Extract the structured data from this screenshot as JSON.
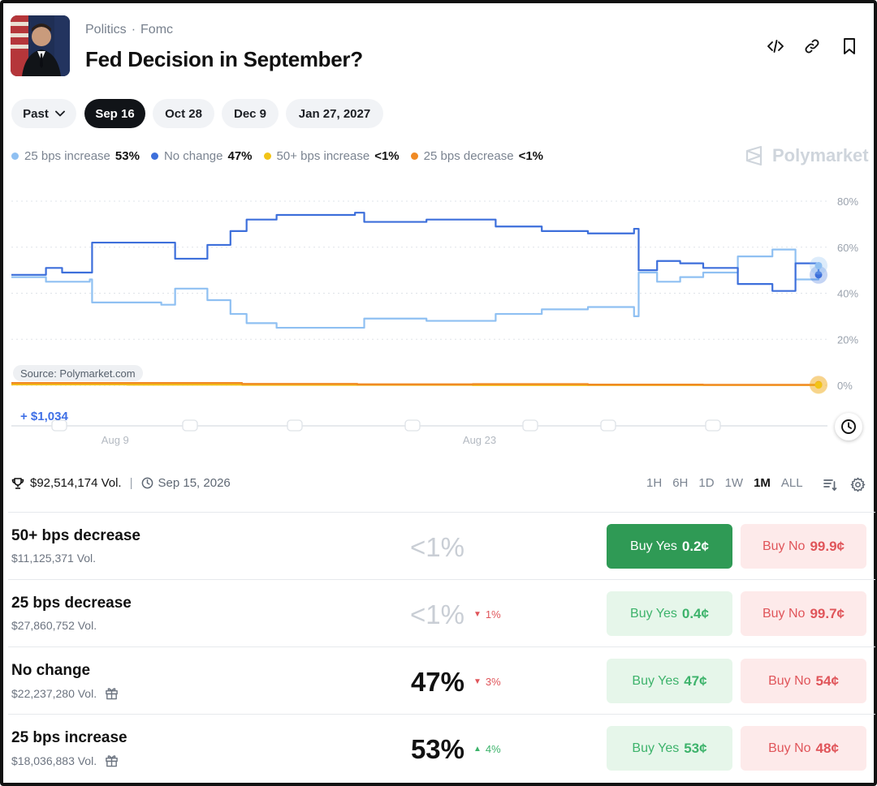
{
  "header": {
    "category": "Politics",
    "subcategory": "Fomc",
    "title": "Fed Decision in September?",
    "icons": [
      "embed-icon",
      "link-icon",
      "bookmark-icon"
    ]
  },
  "tabs": [
    {
      "label": "Past",
      "has_dropdown": true,
      "active": false
    },
    {
      "label": "Sep 16",
      "active": true
    },
    {
      "label": "Oct 28",
      "active": false
    },
    {
      "label": "Dec 9",
      "active": false
    },
    {
      "label": "Jan 27, 2027",
      "active": false
    }
  ],
  "legend": [
    {
      "label": "25 bps increase",
      "pct": "53%",
      "color": "#8fc0f2"
    },
    {
      "label": "No change",
      "pct": "47%",
      "color": "#3d6fdb"
    },
    {
      "label": "50+ bps increase",
      "pct": "<1%",
      "color": "#f2c417"
    },
    {
      "label": "25 bps decrease",
      "pct": "<1%",
      "color": "#f08a24"
    }
  ],
  "brand": "Polymarket",
  "chart_data": {
    "type": "line",
    "source": "Source: Polymarket.com",
    "change": "+ $1,034",
    "yticks": [
      "80%",
      "60%",
      "40%",
      "20%",
      "0%"
    ],
    "ylim": [
      0,
      80
    ],
    "xlim": [
      0,
      35
    ],
    "xticks": [
      {
        "label": "Aug 9",
        "x": 4.5
      },
      {
        "label": "Aug 23",
        "x": 20.3
      }
    ],
    "grid": true,
    "series": [
      {
        "name": "No change",
        "color": "#3d6fdb",
        "points": [
          [
            0,
            48
          ],
          [
            1.5,
            51
          ],
          [
            2.2,
            49
          ],
          [
            3.4,
            49
          ],
          [
            3.5,
            62
          ],
          [
            6.5,
            62
          ],
          [
            7.1,
            55
          ],
          [
            8.5,
            61
          ],
          [
            9.5,
            67
          ],
          [
            10.2,
            72
          ],
          [
            11.5,
            74
          ],
          [
            14.9,
            75
          ],
          [
            15.3,
            71
          ],
          [
            18,
            72
          ],
          [
            21,
            69
          ],
          [
            23,
            67
          ],
          [
            25,
            66
          ],
          [
            27,
            68
          ],
          [
            27.2,
            50
          ],
          [
            28,
            54
          ],
          [
            29,
            53
          ],
          [
            30,
            51
          ],
          [
            31.5,
            44
          ],
          [
            33,
            41
          ],
          [
            34,
            53
          ],
          [
            35,
            48
          ]
        ]
      },
      {
        "name": "25 bps increase",
        "color": "#8fc0f2",
        "points": [
          [
            0,
            47
          ],
          [
            1.5,
            45
          ],
          [
            2.2,
            45
          ],
          [
            3.4,
            46
          ],
          [
            3.5,
            36
          ],
          [
            6.5,
            35
          ],
          [
            7.1,
            42
          ],
          [
            8.5,
            37
          ],
          [
            9.5,
            31
          ],
          [
            10.2,
            27
          ],
          [
            11.5,
            25
          ],
          [
            14.9,
            25
          ],
          [
            15.3,
            29
          ],
          [
            18,
            28
          ],
          [
            21,
            31
          ],
          [
            23,
            33
          ],
          [
            25,
            34
          ],
          [
            27,
            30
          ],
          [
            27.2,
            49
          ],
          [
            28,
            45
          ],
          [
            29,
            47
          ],
          [
            30,
            49
          ],
          [
            31.5,
            56
          ],
          [
            33,
            59
          ],
          [
            34,
            46
          ],
          [
            35,
            52
          ]
        ]
      },
      {
        "name": "25 bps decrease",
        "color": "#f08a24",
        "points": [
          [
            0,
            1
          ],
          [
            5,
            1
          ],
          [
            10,
            0.6
          ],
          [
            15,
            0.4
          ],
          [
            20,
            0.5
          ],
          [
            25,
            0.3
          ],
          [
            30,
            0.2
          ],
          [
            35,
            0.3
          ]
        ]
      },
      {
        "name": "50+ bps increase",
        "color": "#f2c417",
        "points": [
          [
            0,
            0.4
          ],
          [
            5,
            0.3
          ],
          [
            10,
            0.2
          ],
          [
            15,
            0.2
          ],
          [
            20,
            0.1
          ],
          [
            25,
            0.1
          ],
          [
            30,
            0.1
          ],
          [
            35,
            0.1
          ]
        ]
      }
    ]
  },
  "stats": {
    "volume": "$92,514,174 Vol.",
    "end_date": "Sep 15, 2026"
  },
  "ranges": [
    {
      "label": "1H",
      "active": false
    },
    {
      "label": "6H",
      "active": false
    },
    {
      "label": "1D",
      "active": false
    },
    {
      "label": "1W",
      "active": false
    },
    {
      "label": "1M",
      "active": true
    },
    {
      "label": "ALL",
      "active": false
    }
  ],
  "outcomes": [
    {
      "name": "50+ bps decrease",
      "volume": "$11,125,371 Vol.",
      "prob": "<1%",
      "change": "",
      "dir": "",
      "yes_label": "Buy Yes",
      "yes_price": "0.2¢",
      "no_label": "Buy No",
      "no_price": "99.9¢",
      "gift": false
    },
    {
      "name": "25 bps decrease",
      "volume": "$27,860,752 Vol.",
      "prob": "<1%",
      "change": "1%",
      "dir": "down",
      "yes_label": "Buy Yes",
      "yes_price": "0.4¢",
      "no_label": "Buy No",
      "no_price": "99.7¢",
      "gift": false
    },
    {
      "name": "No change",
      "volume": "$22,237,280 Vol.",
      "prob": "47%",
      "change": "3%",
      "dir": "down",
      "yes_label": "Buy Yes",
      "yes_price": "47¢",
      "no_label": "Buy No",
      "no_price": "54¢",
      "gift": true
    },
    {
      "name": "25 bps increase",
      "volume": "$18,036,883 Vol.",
      "prob": "53%",
      "change": "4%",
      "dir": "up",
      "yes_label": "Buy Yes",
      "yes_price": "53¢",
      "no_label": "Buy No",
      "no_price": "48¢",
      "gift": true
    }
  ]
}
